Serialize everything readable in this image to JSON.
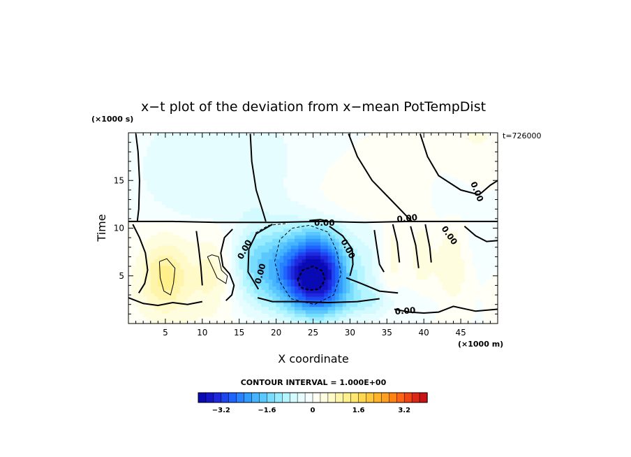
{
  "chart_data": {
    "type": "heatmap",
    "title": "x−t plot of the deviation from x−mean PotTempDist",
    "xlabel": "X coordinate",
    "ylabel": "Time",
    "x_unit": "(×1000 m)",
    "y_unit": "(×1000 s)",
    "time_label": "t=726000",
    "xlim": [
      0,
      50
    ],
    "ylim": [
      0,
      20
    ],
    "x_ticks": [
      5,
      10,
      15,
      20,
      25,
      30,
      35,
      40,
      45
    ],
    "y_ticks": [
      5,
      10,
      15
    ],
    "contour_interval_label": "CONTOUR INTERVAL = 1.000E+00",
    "contour_labels": [
      "0.00",
      "0.00",
      "0.00",
      "0.00",
      "0.00",
      "0.00",
      "0.00",
      "0.00"
    ],
    "colorbar": {
      "min": -4.0,
      "max": 4.0,
      "step": 0.2,
      "tick_values": [
        -3.2,
        -1.6,
        0,
        1.6,
        3.2
      ],
      "tick_labels": [
        "−3.2",
        "−1.6",
        "0",
        "1.6",
        "3.2"
      ]
    },
    "features": [
      {
        "name": "cold-anomaly-core",
        "x": 25,
        "y": 5,
        "value": -3.0
      },
      {
        "name": "cold-tongue-left",
        "x": 17,
        "y": 6,
        "value": -0.8
      },
      {
        "name": "warm-anomaly-left",
        "x": 5,
        "y": 5,
        "value": 1.0
      },
      {
        "name": "warm-band-upper",
        "x": 28,
        "y": 15,
        "value": 0.4
      },
      {
        "name": "cool-region-upper-left",
        "x": 12,
        "y": 16,
        "value": -0.5
      },
      {
        "name": "warm-patches-right",
        "x": 38,
        "y": 7,
        "value": 0.5
      }
    ]
  },
  "colors": {
    "palette": [
      "#0a0ab4",
      "#1414c8",
      "#1e28dc",
      "#1e46f0",
      "#1e64ff",
      "#2882ff",
      "#329bff",
      "#46b4ff",
      "#5ac8ff",
      "#78dcff",
      "#96ebff",
      "#b4f5ff",
      "#d2faff",
      "#e6fdff",
      "#f5ffff",
      "#fffff5",
      "#fffde0",
      "#fffac8",
      "#fff5aa",
      "#fff08c",
      "#ffe66e",
      "#ffd750",
      "#ffc83c",
      "#ffb428",
      "#ffa01e",
      "#ff8214",
      "#ff6414",
      "#f04614",
      "#dc2814",
      "#c81414"
    ]
  }
}
